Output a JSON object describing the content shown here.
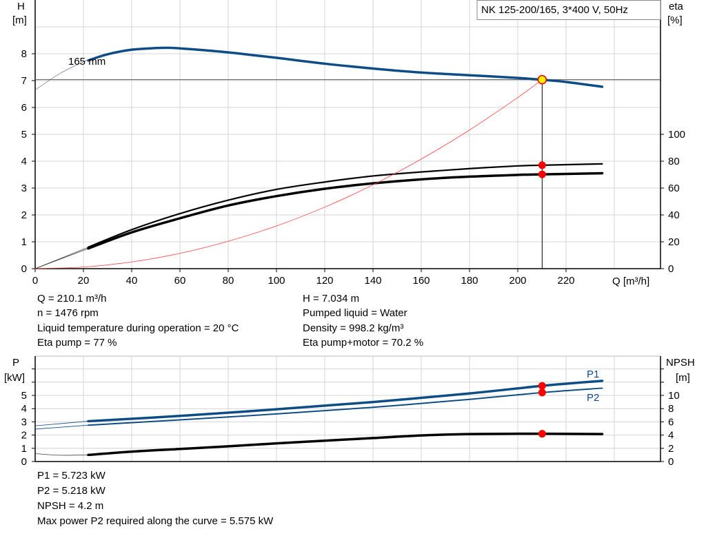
{
  "chart_data": [
    {
      "type": "line",
      "title_box": "NK 125-200/165, 3*400 V, 50Hz",
      "xlabel": "Q [m³/h]",
      "ylabel_left": [
        "H",
        "[m]"
      ],
      "ylabel_right": [
        "eta",
        "[%]"
      ],
      "xlim": [
        0,
        240
      ],
      "ylim_left": [
        0,
        9
      ],
      "ylim_right": [
        0,
        100
      ],
      "x_ticks": [
        0,
        20,
        40,
        60,
        80,
        100,
        120,
        140,
        160,
        180,
        200,
        220
      ],
      "y_ticks_left": [
        0,
        1,
        2,
        3,
        4,
        5,
        6,
        7,
        8
      ],
      "y_ticks_right": [
        0,
        20,
        40,
        60,
        80,
        100
      ],
      "grid": true,
      "curve_label": "165 mm",
      "operating_point": {
        "Q": 210.1,
        "H": 7.034,
        "eta_pump": 77,
        "eta_pump_motor": 70.2
      },
      "series": [
        {
          "key": "H",
          "axis": "left",
          "color": "#0e4c85",
          "x": [
            0,
            10,
            20,
            22,
            30,
            40,
            50,
            55,
            60,
            70,
            80,
            90,
            100,
            120,
            140,
            160,
            180,
            200,
            210,
            220,
            235
          ],
          "y": [
            6.65,
            7.25,
            7.7,
            7.75,
            7.98,
            8.15,
            8.21,
            8.22,
            8.2,
            8.13,
            8.05,
            7.95,
            7.85,
            7.63,
            7.45,
            7.3,
            7.2,
            7.1,
            7.03,
            6.95,
            6.77
          ]
        },
        {
          "key": "eta_pump",
          "axis": "right",
          "color": "#000000",
          "x": [
            0,
            22,
            40,
            60,
            80,
            100,
            120,
            140,
            160,
            180,
            200,
            210,
            235
          ],
          "y": [
            0,
            16,
            29,
            41,
            51,
            59,
            64.5,
            69,
            72,
            74.5,
            76.5,
            77,
            78
          ]
        },
        {
          "key": "eta_pump_motor",
          "axis": "right",
          "color": "#000000",
          "x": [
            0,
            22,
            40,
            60,
            80,
            100,
            120,
            140,
            160,
            180,
            200,
            210,
            235
          ],
          "y": [
            0,
            15,
            27,
            37.5,
            47,
            54,
            59.5,
            63.5,
            66.5,
            68.5,
            69.8,
            70.2,
            71
          ]
        },
        {
          "key": "system",
          "axis": "left",
          "color": "#ff4040",
          "x": [
            0,
            20,
            40,
            60,
            80,
            100,
            120,
            140,
            160,
            180,
            200,
            210.1
          ],
          "y": [
            0,
            0.06,
            0.25,
            0.57,
            1.02,
            1.59,
            2.29,
            3.12,
            4.08,
            5.16,
            6.37,
            7.034
          ]
        }
      ]
    },
    {
      "type": "line",
      "ylabel_left": [
        "P",
        "[kW]"
      ],
      "ylabel_right": [
        "NPSH",
        "[m]"
      ],
      "xlim": [
        0,
        240
      ],
      "ylim_left": [
        0,
        7.8
      ],
      "y_ticks_left": [
        0,
        1,
        2,
        3,
        4,
        5
      ],
      "y_ticks_right": [
        0,
        2,
        4,
        6,
        8,
        10
      ],
      "grid": true,
      "series": [
        {
          "name": "P1",
          "axis": "left",
          "color": "#0e4c85",
          "x": [
            0,
            22,
            60,
            100,
            140,
            180,
            210,
            235
          ],
          "y": [
            2.7,
            3.05,
            3.45,
            3.95,
            4.5,
            5.15,
            5.723,
            6.1
          ]
        },
        {
          "name": "P2",
          "axis": "left",
          "color": "#0e4c85",
          "x": [
            0,
            22,
            60,
            100,
            140,
            180,
            210,
            235
          ],
          "y": [
            2.45,
            2.75,
            3.15,
            3.6,
            4.1,
            4.7,
            5.218,
            5.55
          ]
        },
        {
          "key": "NPSH",
          "axis": "right",
          "color": "#000000",
          "x": [
            0,
            10,
            22,
            40,
            60,
            80,
            100,
            120,
            140,
            160,
            180,
            200,
            210,
            235
          ],
          "y": [
            1.2,
            0.95,
            1.0,
            1.5,
            1.9,
            2.3,
            2.75,
            3.15,
            3.55,
            3.95,
            4.15,
            4.2,
            4.2,
            4.15
          ]
        }
      ]
    }
  ],
  "info_top": {
    "q": "Q = 210.1 m³/h",
    "n": "n = 1476 rpm",
    "temp": "Liquid temperature during operation = 20 °C",
    "eta_pump": "Eta pump = 77 %",
    "h": "H = 7.034 m",
    "liquid": "Pumped liquid = Water",
    "density": "Density = 998.2 kg/m³",
    "eta_pm": "Eta pump+motor = 70.2 %"
  },
  "info_bottom": {
    "p1": "P1 = 5.723 kW",
    "p2": "P2 = 5.218 kW",
    "npsh": "NPSH = 4.2 m",
    "maxp2": "Max power P2 required along the curve = 5.575 kW"
  }
}
